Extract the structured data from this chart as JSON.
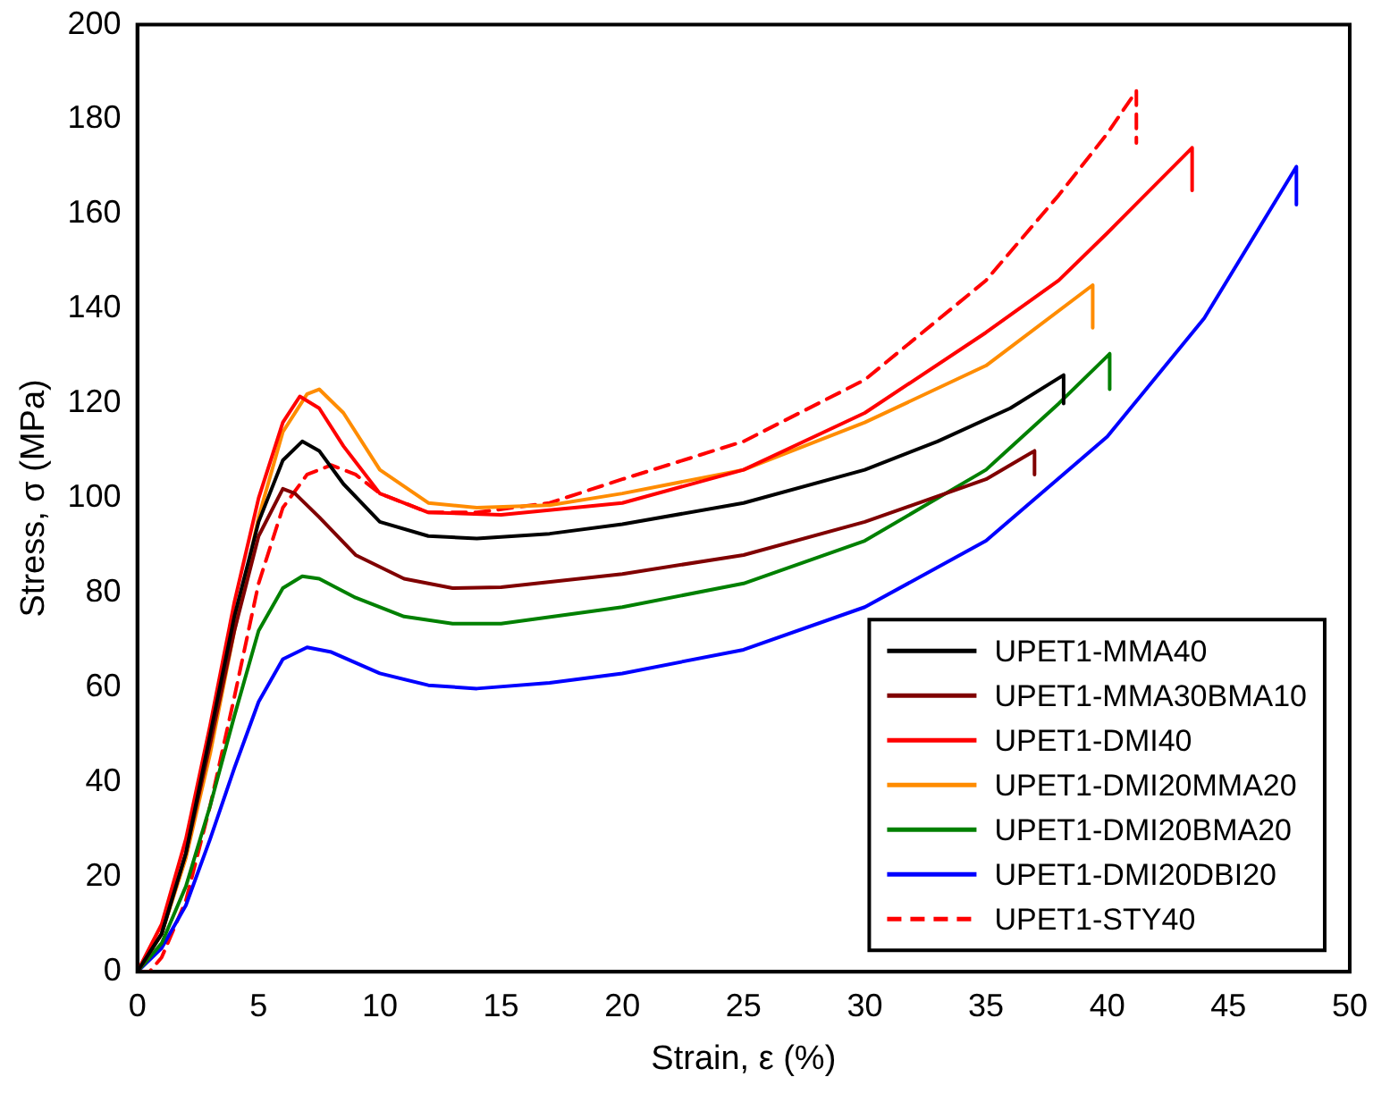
{
  "chart_data": {
    "type": "line",
    "xlabel": "Strain, ε (%)",
    "ylabel": "Stress, σ (MPa)",
    "xlim": [
      0,
      50
    ],
    "xticks": [
      0,
      5,
      10,
      15,
      20,
      25,
      30,
      35,
      40,
      45,
      50
    ],
    "ylim": [
      0,
      200
    ],
    "yticks": [
      0,
      20,
      40,
      60,
      80,
      100,
      120,
      140,
      160,
      180,
      200
    ],
    "grid": false,
    "legend": "bottom right",
    "marker": "none",
    "series": [
      {
        "name": "UPET1-MMA40",
        "color": "#000000",
        "line_style": "solid",
        "x": [
          0,
          1,
          2,
          3,
          4,
          5,
          6,
          6.8,
          7.5,
          8.5,
          10,
          12,
          14,
          17,
          20,
          25,
          30,
          33,
          36,
          38.2,
          38.2
        ],
        "values": [
          0,
          8,
          25,
          50,
          75,
          95,
          108,
          112,
          110,
          103,
          95,
          92,
          91.5,
          92.5,
          94.5,
          99,
          106,
          112,
          119,
          126,
          120
        ]
      },
      {
        "name": "UPET1-MMA30BMA10",
        "color": "#800000",
        "line_style": "solid",
        "x": [
          0,
          1,
          2,
          3,
          4,
          5,
          6,
          6.5,
          7.5,
          9,
          11,
          13,
          15,
          20,
          25,
          30,
          35,
          37,
          37
        ],
        "values": [
          0,
          8,
          25,
          48,
          72,
          92,
          102,
          101,
          96,
          88,
          83,
          81,
          81.2,
          84,
          88,
          95,
          104,
          110,
          105
        ]
      },
      {
        "name": "UPET1-DMI40",
        "color": "#ff0000",
        "line_style": "solid",
        "x": [
          0,
          1,
          2,
          3,
          4,
          5,
          6,
          6.7,
          7.5,
          8.5,
          10,
          12,
          15,
          20,
          25,
          30,
          35,
          38,
          40,
          43.5,
          43.5
        ],
        "values": [
          0,
          10,
          28,
          52,
          78,
          100,
          116,
          121.5,
          119,
          111,
          101,
          97,
          96.5,
          99,
          106,
          118,
          135,
          146,
          156,
          174,
          165
        ]
      },
      {
        "name": "UPET1-DMI20MMA20",
        "color": "#ff8c00",
        "line_style": "solid",
        "x": [
          0,
          1,
          2,
          3,
          4,
          5,
          6,
          7,
          7.5,
          8.5,
          10,
          12,
          14,
          17,
          20,
          25,
          30,
          35,
          39.4,
          39.4
        ],
        "values": [
          0,
          8,
          24,
          46,
          72,
          96,
          114,
          122,
          123,
          118,
          106,
          99,
          98,
          98.5,
          101,
          106,
          116,
          128,
          145,
          136
        ]
      },
      {
        "name": "UPET1-DMI20BMA20",
        "color": "#008000",
        "line_style": "solid",
        "x": [
          0,
          1,
          2,
          3,
          4,
          5,
          6,
          6.8,
          7.5,
          9,
          11,
          13,
          15,
          20,
          25,
          30,
          35,
          38,
          40.1,
          40.1
        ],
        "values": [
          0,
          6,
          18,
          35,
          54,
          72,
          81,
          83.5,
          83,
          79,
          75,
          73.5,
          73.5,
          77,
          82,
          91,
          106,
          120,
          130.5,
          123
        ]
      },
      {
        "name": "UPET1-DMI20DBI20",
        "color": "#0000ff",
        "line_style": "solid",
        "x": [
          0,
          1,
          2,
          3,
          4,
          5,
          6,
          7,
          8,
          10,
          12,
          14,
          17,
          20,
          25,
          30,
          35,
          40,
          44,
          47.8,
          47.8
        ],
        "values": [
          0,
          5,
          14,
          28,
          43,
          57,
          66,
          68.5,
          67.5,
          63,
          60.5,
          59.8,
          61,
          63,
          68,
          77,
          91,
          113,
          138,
          170,
          162
        ]
      },
      {
        "name": "UPET1-STY40",
        "color": "#ff0000",
        "line_style": "dashed",
        "x": [
          0,
          0.5,
          1,
          2,
          3,
          4,
          5,
          6,
          7,
          8,
          9,
          10,
          12,
          14,
          17,
          20,
          25,
          30,
          35,
          38,
          40,
          41.2,
          41.2
        ],
        "values": [
          0,
          0,
          3,
          15,
          35,
          58,
          82,
          98,
          105,
          107,
          105,
          101,
          97,
          97,
          99,
          104,
          112,
          125,
          146,
          164,
          177,
          186,
          175
        ]
      }
    ]
  }
}
